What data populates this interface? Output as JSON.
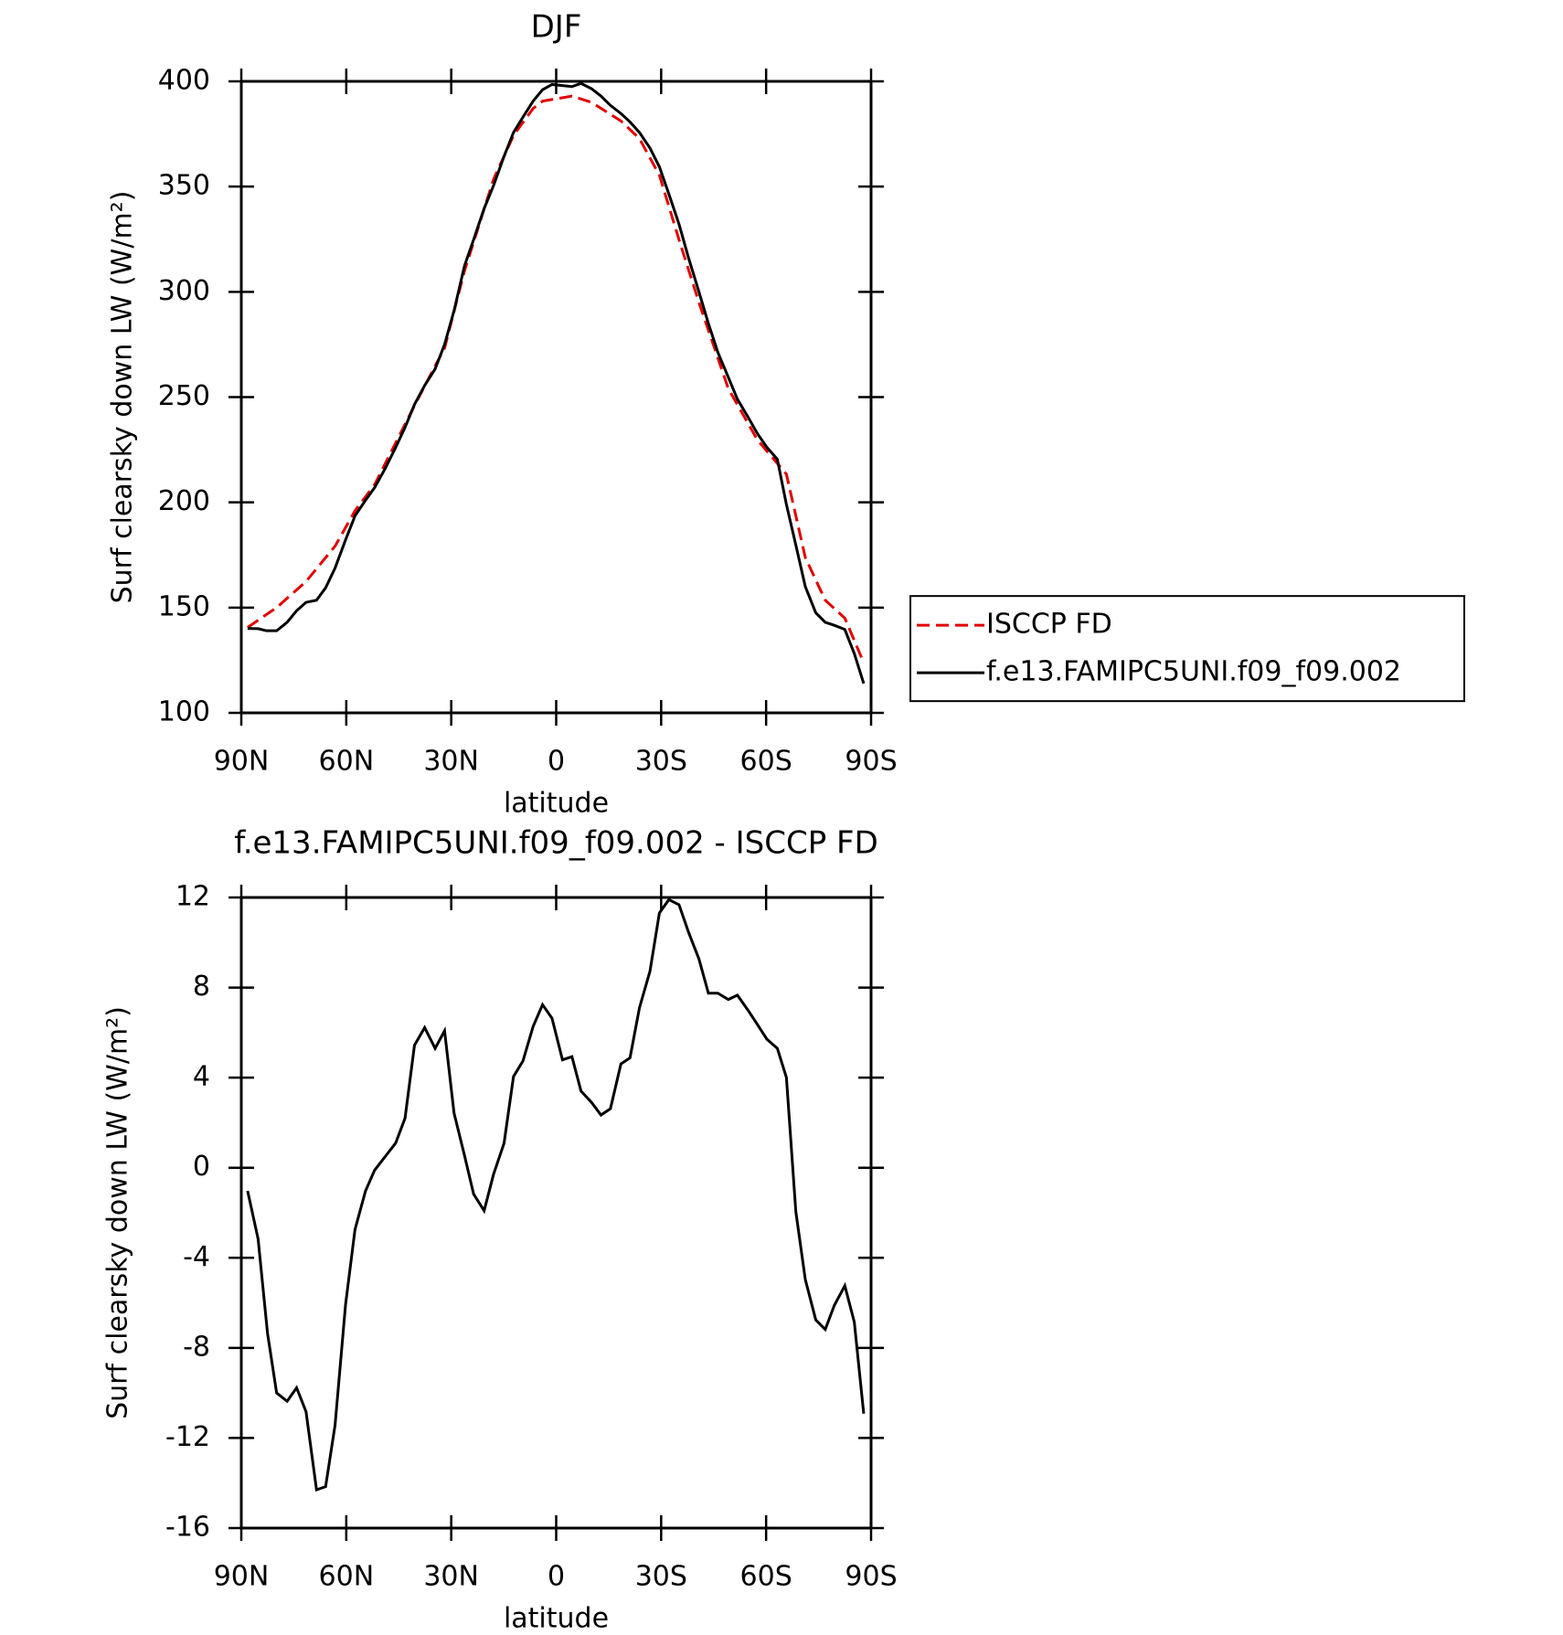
{
  "chart_data": [
    {
      "type": "line",
      "title": "DJF",
      "x_label": "latitude",
      "y_label": "Surf clearsky down LW (W/m²)",
      "xlim": [
        90,
        -90
      ],
      "xticks": [
        {
          "value": 90,
          "label": "90N"
        },
        {
          "value": 60,
          "label": "60N"
        },
        {
          "value": 30,
          "label": "30N"
        },
        0,
        {
          "value": -30,
          "label": "30S"
        },
        {
          "value": -60,
          "label": "60S"
        },
        {
          "value": -90,
          "label": "90S"
        }
      ],
      "ylim": [
        100,
        400
      ],
      "yticks": [
        100,
        150,
        200,
        250,
        300,
        350,
        400
      ],
      "legend": "right",
      "series": [
        {
          "name": "ISCCP FD",
          "color": "#e00000",
          "style": "dashed",
          "x": [
            88.2,
            79.9,
            71.5,
            63.2,
            57.5,
            51.9,
            40.5,
            31.9,
            26.2,
            17.9,
            12.2,
            6.6,
            3.9,
            -4.5,
            -10.1,
            -18.5,
            -23.8,
            -29.5,
            -35.1,
            -40.8,
            -49.2,
            -57.5,
            -65.8,
            -71.2,
            -76.9,
            -82.5,
            -87.9
          ],
          "values": [
            140.6,
            150,
            162.4,
            179.2,
            196,
            208.4,
            246,
            273.3,
            310,
            353.5,
            374.3,
            387.1,
            390.6,
            393,
            390,
            381.2,
            372.8,
            355.4,
            324.8,
            295,
            254,
            229.7,
            213.4,
            173.8,
            153.5,
            145,
            123.8
          ]
        },
        {
          "name": "f.e13.FAMIPC5UNI.f09_f09.002",
          "color": "#000000",
          "style": "solid",
          "x": [
            88.2,
            85.2,
            82.8,
            79.9,
            76.9,
            74.2,
            71.5,
            68.5,
            65.9,
            63.2,
            60.2,
            57.5,
            54.5,
            51.9,
            48.9,
            45.9,
            43.2,
            40.5,
            37.6,
            34.6,
            31.9,
            29.2,
            26.2,
            23.6,
            20.6,
            17.9,
            14.9,
            12.2,
            9.5,
            6.6,
            3.9,
            1.2,
            -1.8,
            -4.5,
            -7.1,
            -10.1,
            -12.8,
            -15.5,
            -18.5,
            -21.1,
            -23.8,
            -26.8,
            -29.5,
            -32.2,
            -35.1,
            -37.8,
            -40.8,
            -43.5,
            -46.2,
            -49.2,
            -51.8,
            -54.8,
            -57.5,
            -60.2,
            -63.2,
            -65.8,
            -68.5,
            -71.2,
            -74.2,
            -76.9,
            -79.5,
            -82.5,
            -85.2,
            -87.9
          ],
          "values": [
            140.1,
            140,
            139,
            139,
            143,
            148.5,
            152.5,
            153.5,
            159.4,
            168.8,
            182.2,
            193.6,
            201,
            207,
            216,
            226,
            235.6,
            246.5,
            255.5,
            263.4,
            275,
            291,
            312.4,
            324.8,
            339.6,
            350.5,
            364.4,
            375.7,
            383,
            390.6,
            396,
            398.5,
            398,
            397.5,
            399,
            396.5,
            393,
            388.6,
            384.7,
            380.7,
            375.7,
            368.3,
            359.4,
            346.5,
            332.2,
            316.3,
            300,
            285,
            271.3,
            259.4,
            249,
            240.6,
            232.7,
            226.2,
            220.5,
            199,
            179.7,
            160,
            147.5,
            143,
            141.6,
            139.6,
            128.2,
            113.9
          ]
        }
      ]
    },
    {
      "type": "line",
      "title": "f.e13.FAMIPC5UNI.f09_f09.002 - ISCCP FD",
      "x_label": "latitude",
      "y_label": "Surf clearsky down LW (W/m²)",
      "xlim": [
        90,
        -90
      ],
      "xticks": [
        {
          "value": 90,
          "label": "90N"
        },
        {
          "value": 60,
          "label": "60N"
        },
        {
          "value": 30,
          "label": "30N"
        },
        0,
        {
          "value": -30,
          "label": "30S"
        },
        {
          "value": -60,
          "label": "60S"
        },
        {
          "value": -90,
          "label": "90S"
        }
      ],
      "ylim": [
        -16,
        12
      ],
      "yticks": [
        -16,
        -12,
        -8,
        -4,
        0,
        4,
        8,
        12
      ],
      "series": [
        {
          "color": "#000000",
          "style": "solid",
          "x": [
            88.2,
            85.2,
            82.5,
            79.9,
            76.9,
            74.2,
            71.5,
            68.5,
            65.9,
            63.2,
            60.2,
            57.5,
            54.5,
            51.9,
            48.9,
            45.9,
            43.2,
            40.5,
            37.6,
            34.6,
            31.9,
            29.2,
            26.2,
            23.6,
            20.6,
            17.9,
            14.9,
            12.2,
            9.5,
            6.6,
            3.9,
            1.2,
            -1.8,
            -4.5,
            -7.1,
            -10.1,
            -12.8,
            -15.5,
            -18.5,
            -21.1,
            -23.8,
            -26.8,
            -29.5,
            -32.2,
            -35.1,
            -37.8,
            -40.8,
            -43.5,
            -46.2,
            -49.2,
            -51.8,
            -54.8,
            -57.5,
            -60.2,
            -63.2,
            -65.8,
            -68.5,
            -71.2,
            -74.2,
            -76.9,
            -79.5,
            -82.5,
            -85.2,
            -87.9
          ],
          "values": [
            -1.03,
            -3.16,
            -7.36,
            -10,
            -10.37,
            -9.77,
            -10.83,
            -14.3,
            -14.16,
            -11.43,
            -6.07,
            -2.74,
            -1.03,
            -0.11,
            0.49,
            1.09,
            2.2,
            5.44,
            6.22,
            5.3,
            6.08,
            2.43,
            0.54,
            -1.17,
            -1.91,
            -0.29,
            1.09,
            4.05,
            4.74,
            6.27,
            7.24,
            6.64,
            4.79,
            4.93,
            3.4,
            2.9,
            2.34,
            2.62,
            4.61,
            4.88,
            7.1,
            8.72,
            11.31,
            11.9,
            11.68,
            10.47,
            9.27,
            7.75,
            7.75,
            7.47,
            7.66,
            7,
            6.36,
            5.71,
            5.3,
            4.01,
            -1.96,
            -4.96,
            -6.76,
            -7.18,
            -6.11,
            -5.24,
            -6.85,
            -10.92
          ]
        }
      ]
    }
  ]
}
